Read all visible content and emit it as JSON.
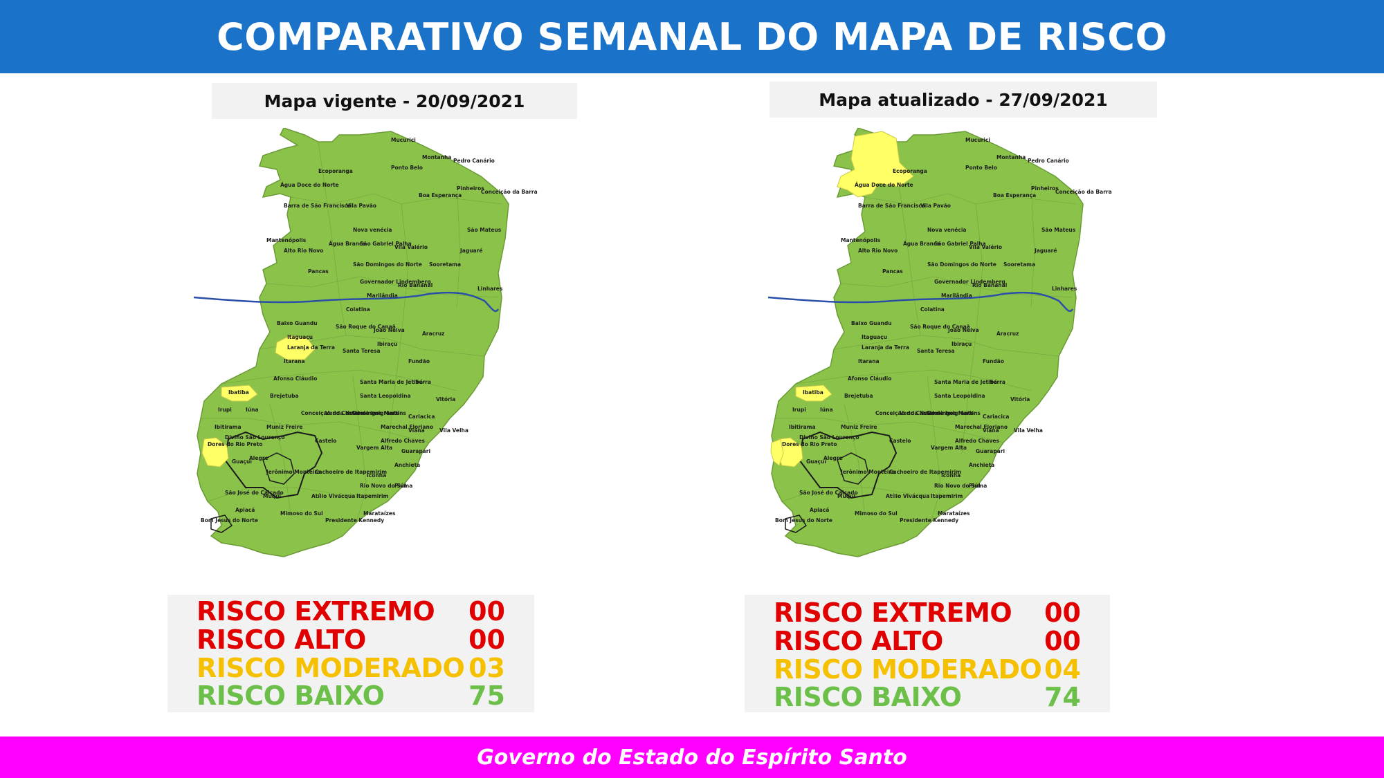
{
  "header": {
    "title": "COMPARATIVO SEMANAL DO MAPA DE RISCO"
  },
  "colors": {
    "header_bg": "#1a73c9",
    "footer_bg": "#ff00ff",
    "risk_extreme": "#e00000",
    "risk_high": "#e00000",
    "risk_moderate": "#f5c000",
    "risk_low": "#6cc04a",
    "map_green": "#8bc34a",
    "map_yellow": "#ffff66",
    "river": "#2b4fa8"
  },
  "maps": [
    {
      "title": "Mapa vigente - 20/09/2021",
      "moderate_municipalities": [
        "Laranja da Terra",
        "Ibatiba",
        "Guaçuí"
      ],
      "legend": [
        {
          "label": "RISCO EXTREMO",
          "value": "00",
          "level": "extreme"
        },
        {
          "label": "RISCO ALTO",
          "value": "00",
          "level": "high"
        },
        {
          "label": "RISCO MODERADO",
          "value": "03",
          "level": "moderate"
        },
        {
          "label": "RISCO BAIXO",
          "value": "75",
          "level": "low"
        }
      ]
    },
    {
      "title": "Mapa atualizado - 27/09/2021",
      "moderate_municipalities": [
        "Ecoporanga",
        "Ibatiba",
        "Guaçuí",
        "Dores do Rio Preto"
      ],
      "legend": [
        {
          "label": "RISCO EXTREMO",
          "value": "00",
          "level": "extreme"
        },
        {
          "label": "RISCO ALTO",
          "value": "00",
          "level": "high"
        },
        {
          "label": "RISCO MODERADO",
          "value": "04",
          "level": "moderate"
        },
        {
          "label": "RISCO BAIXO",
          "value": "74",
          "level": "low"
        }
      ]
    }
  ],
  "municipality_labels": [
    "Mucurici",
    "Montanha",
    "Pedro Canário",
    "Ecoporanga",
    "Ponto Belo",
    "Pinheiros",
    "Água Doce do Norte",
    "Boa Esperança",
    "Conceição da Barra",
    "Vila Pavão",
    "Barra de São Francisco",
    "São Mateus",
    "Nova venécia",
    "Mantenópolis",
    "Água Branca",
    "São Gabriel Palha",
    "Vila Valério",
    "Jaguaré",
    "Alto Rio Novo",
    "São Domingos do Norte",
    "Sooretama",
    "Pancas",
    "Governador Lindemberg",
    "Rio Bananal",
    "Linhares",
    "Marilândia",
    "Colatina",
    "Baixo Guandu",
    "São Roque do Canaã",
    "João Neiva",
    "Aracruz",
    "Itaguaçu",
    "Laranja da Terra",
    "Santa Teresa",
    "Ibiraçu",
    "Itarana",
    "Fundão",
    "Afonso Cláudio",
    "Santa Maria de Jetibá",
    "Serra",
    "Brejetuba",
    "Santa Leopoldina",
    "Ibatiba",
    "Vitória",
    "Domingos Martins",
    "Irupi",
    "Iúna",
    "Conceição do Castelo",
    "Venda Nova do Imigrante",
    "Cariacica",
    "Ibitirama",
    "Muniz Freire",
    "Marechal Floriano",
    "Viana",
    "Vila Velha",
    "Divino São Lourenço",
    "Castelo",
    "Alfredo Chaves",
    "Dores do Rio Preto",
    "Vargem Alta",
    "Guarapari",
    "Guaçuí",
    "Alegre",
    "Jerônimo Monteiro",
    "Cachoeiro de Itapemirim",
    "Anchieta",
    "Iconha",
    "Rio Novo do Sul",
    "Piúma",
    "São José do Calçado",
    "Muqui",
    "Atílio Vivácqua",
    "Itapemirim",
    "Apiacá",
    "Mimoso do Sul",
    "Presidente Kennedy",
    "Marataízes",
    "Bom Jesus do Norte"
  ],
  "footer": {
    "text": "Governo do Estado do Espírito Santo"
  }
}
